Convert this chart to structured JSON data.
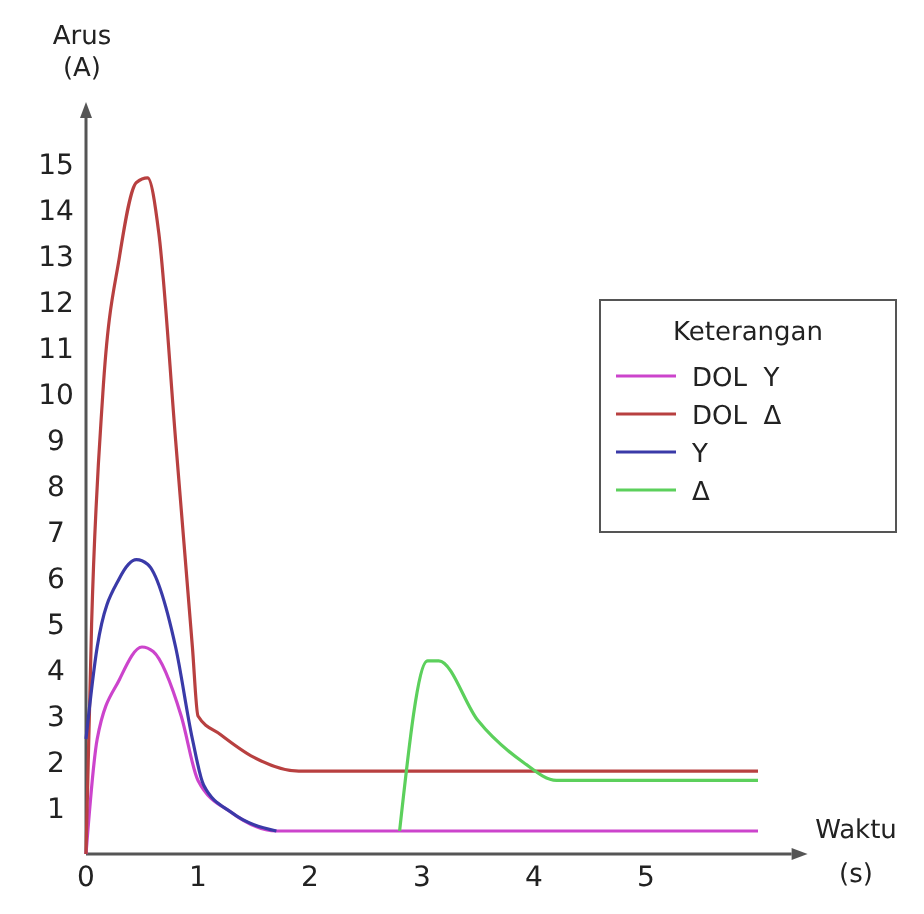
{
  "chart_data": {
    "type": "line",
    "xlabel": "Waktu (s)",
    "ylabel": "Arus (A)",
    "legend_title": "Keterangan",
    "legend": "right",
    "grid": false,
    "xlim": [
      0,
      6.3
    ],
    "ylim": [
      0,
      16
    ],
    "xticks": [
      0,
      1,
      2,
      3,
      4,
      5
    ],
    "yticks": [
      1,
      2,
      3,
      4,
      5,
      6,
      7,
      8,
      9,
      10,
      11,
      12,
      13,
      14,
      15
    ],
    "series": [
      {
        "name": "DOL  Y",
        "color": "#cc44cc",
        "x": [
          0,
          0.1,
          0.3,
          0.5,
          0.6,
          0.85,
          1.0,
          1.3,
          1.7,
          6
        ],
        "values": [
          0,
          2.5,
          3.8,
          4.5,
          4.4,
          3,
          1.6,
          0.9,
          0.5,
          0.5
        ]
      },
      {
        "name": "DOL  Δ",
        "color": "#b84040",
        "x": [
          0,
          0.05,
          0.15,
          0.3,
          0.45,
          0.55,
          0.65,
          0.8,
          0.95,
          1.0,
          1.2,
          1.5,
          1.9,
          6
        ],
        "values": [
          0,
          5,
          10,
          13,
          14.6,
          14.7,
          13.5,
          9,
          4.5,
          3,
          2.6,
          2.1,
          1.8,
          1.8
        ]
      },
      {
        "name": "Y",
        "color": "#3a3aa8",
        "x": [
          0,
          0.1,
          0.3,
          0.45,
          0.55,
          0.8,
          0.95,
          1.05,
          1.3,
          1.7
        ],
        "values": [
          2.5,
          4.5,
          6,
          6.4,
          6.3,
          4.5,
          2.5,
          1.5,
          0.9,
          0.5
        ]
      },
      {
        "name": "Δ",
        "color": "#5cd05c",
        "x": [
          2.8,
          3.05,
          3.15,
          3.5,
          3.9,
          4.2,
          6
        ],
        "values": [
          0.5,
          4.2,
          4.2,
          2.9,
          2.0,
          1.6,
          1.6
        ]
      }
    ]
  }
}
